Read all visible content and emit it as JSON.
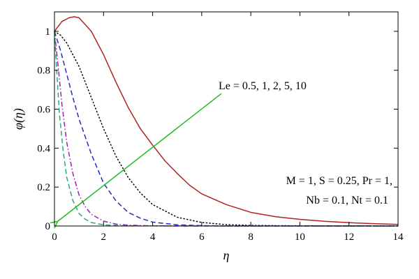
{
  "chart_data": {
    "type": "line",
    "title": "",
    "xlabel": "η",
    "ylabel": "φ(η)",
    "xlim": [
      0,
      14
    ],
    "ylim": [
      0,
      1.1
    ],
    "xticks": [
      0,
      2,
      4,
      6,
      8,
      10,
      12,
      14
    ],
    "yticks": [
      0,
      0.2,
      0.4,
      0.6,
      0.8,
      1
    ],
    "xtick_labels": [
      "0",
      "2",
      "4",
      "6",
      "8",
      "10",
      "12",
      "14"
    ],
    "ytick_labels": [
      "0",
      "0.2",
      "0.4",
      "0.6",
      "0.8",
      "1"
    ],
    "grid": false,
    "series": [
      {
        "color": "#b22222",
        "dash": "solid",
        "x": [
          0,
          0.3,
          0.6,
          0.8,
          1.0,
          1.5,
          2,
          2.5,
          3,
          3.5,
          4,
          4.5,
          5,
          5.5,
          6,
          7,
          8,
          9,
          10,
          11,
          12,
          13,
          14
        ],
        "y": [
          1.0,
          1.05,
          1.07,
          1.075,
          1.07,
          1.0,
          0.88,
          0.74,
          0.61,
          0.5,
          0.415,
          0.335,
          0.27,
          0.21,
          0.165,
          0.11,
          0.07,
          0.048,
          0.034,
          0.024,
          0.017,
          0.012,
          0.008
        ]
      },
      {
        "color": "#000000",
        "dash": "dotted",
        "x": [
          0,
          0.25,
          0.5,
          0.75,
          1.0,
          1.5,
          2,
          2.5,
          3,
          3.5,
          4,
          5,
          6,
          7,
          8,
          10,
          14
        ],
        "y": [
          1.0,
          0.98,
          0.94,
          0.88,
          0.82,
          0.66,
          0.5,
          0.36,
          0.25,
          0.17,
          0.11,
          0.045,
          0.018,
          0.007,
          0.003,
          0.001,
          0.0
        ]
      },
      {
        "color": "#1f2fbf",
        "dash": "dashed",
        "x": [
          0,
          0.25,
          0.5,
          0.75,
          1.0,
          1.5,
          2,
          2.5,
          3,
          3.5,
          4,
          5,
          6,
          7,
          14
        ],
        "y": [
          1.0,
          0.9,
          0.78,
          0.66,
          0.55,
          0.37,
          0.22,
          0.13,
          0.07,
          0.04,
          0.02,
          0.006,
          0.002,
          0.0,
          0.0
        ]
      },
      {
        "color": "#9b1fb0",
        "dash": "dashdot",
        "x": [
          0,
          0.15,
          0.3,
          0.5,
          0.75,
          1.0,
          1.25,
          1.5,
          2,
          2.5,
          3,
          4,
          5,
          14
        ],
        "y": [
          1.0,
          0.82,
          0.63,
          0.43,
          0.27,
          0.16,
          0.1,
          0.06,
          0.025,
          0.01,
          0.004,
          0.001,
          0.0,
          0.0
        ]
      },
      {
        "color": "#22aa88",
        "dash": "dashed",
        "x": [
          0,
          0.1,
          0.2,
          0.35,
          0.5,
          0.75,
          1.0,
          1.25,
          1.5,
          2,
          3,
          14
        ],
        "y": [
          1.0,
          0.78,
          0.58,
          0.39,
          0.25,
          0.13,
          0.065,
          0.035,
          0.018,
          0.006,
          0.001,
          0.0
        ]
      }
    ],
    "arrow": {
      "color": "#22bb22",
      "from": [
        6.8,
        0.68
      ],
      "to": [
        0.05,
        0.0
      ]
    },
    "annotations": {
      "le_label": "Le = 0.5, 1, 2, 5, 10",
      "params_line1": "M = 1, S = 0.25, Pr = 1,",
      "params_line2": "Nb = 0.1, Nt = 0.1"
    }
  }
}
